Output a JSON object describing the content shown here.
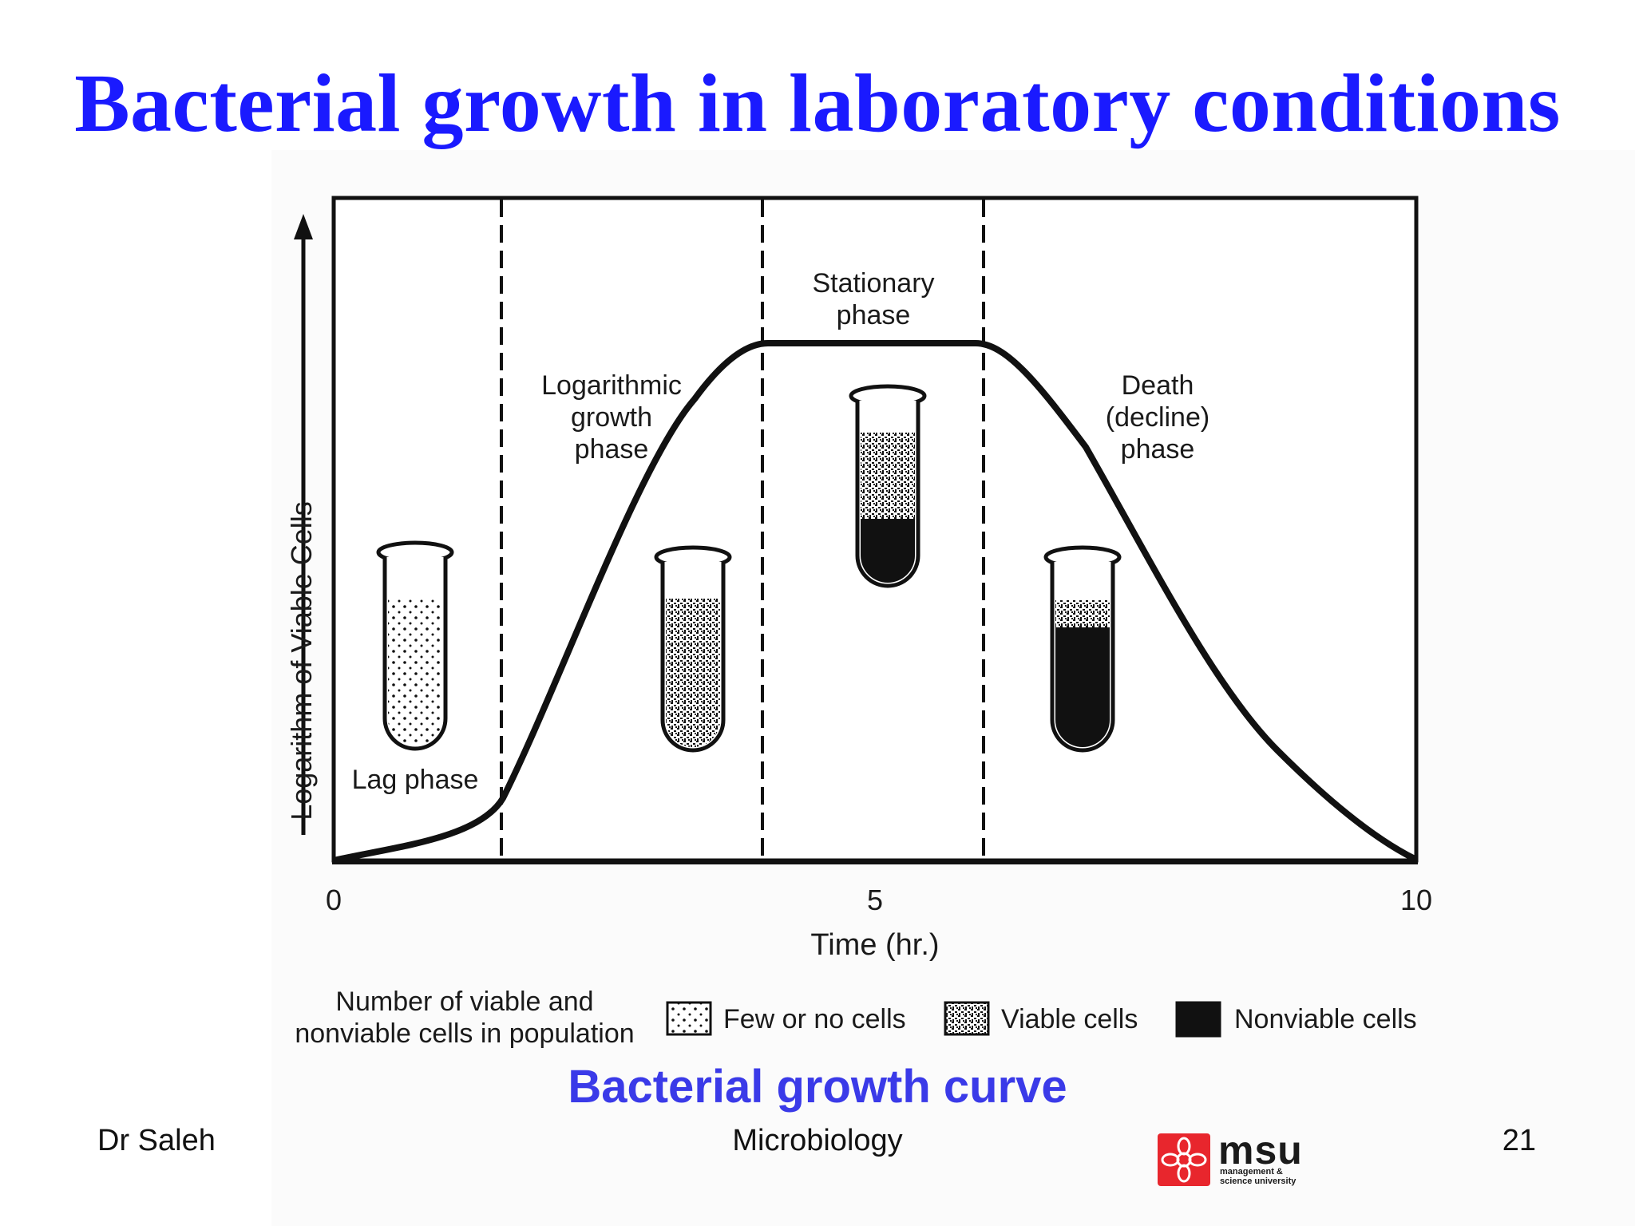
{
  "slide": {
    "title": "Bacterial growth in laboratory conditions",
    "caption": "Bacterial growth curve",
    "footer_left": "Dr Saleh",
    "footer_center": "Microbiology",
    "page_number": "21"
  },
  "logo": {
    "wordmark": "msu",
    "subtext_line1": "management &",
    "subtext_line2": "science university",
    "color": "#e8262d"
  },
  "diagram": {
    "y_axis_label": "Logarithm of Viable Cells",
    "x_axis_label": "Time (hr.)",
    "x_ticks": [
      "0",
      "5",
      "10"
    ],
    "phases": {
      "lag": "Lag phase",
      "log_line1": "Logarithmic",
      "log_line2": "growth",
      "log_line3": "phase",
      "stationary_line1": "Stationary",
      "stationary_line2": "phase",
      "death_line1": "Death",
      "death_line2": "(decline)",
      "death_line3": "phase"
    },
    "legend": {
      "heading_line1": "Number of viable and",
      "heading_line2": "nonviable cells in population",
      "few": "Few or no cells",
      "viable": "Viable cells",
      "nonviable": "Nonviable cells"
    }
  },
  "colors": {
    "title": "#1a1aff",
    "caption": "#3a3ae8",
    "ink": "#111111"
  }
}
